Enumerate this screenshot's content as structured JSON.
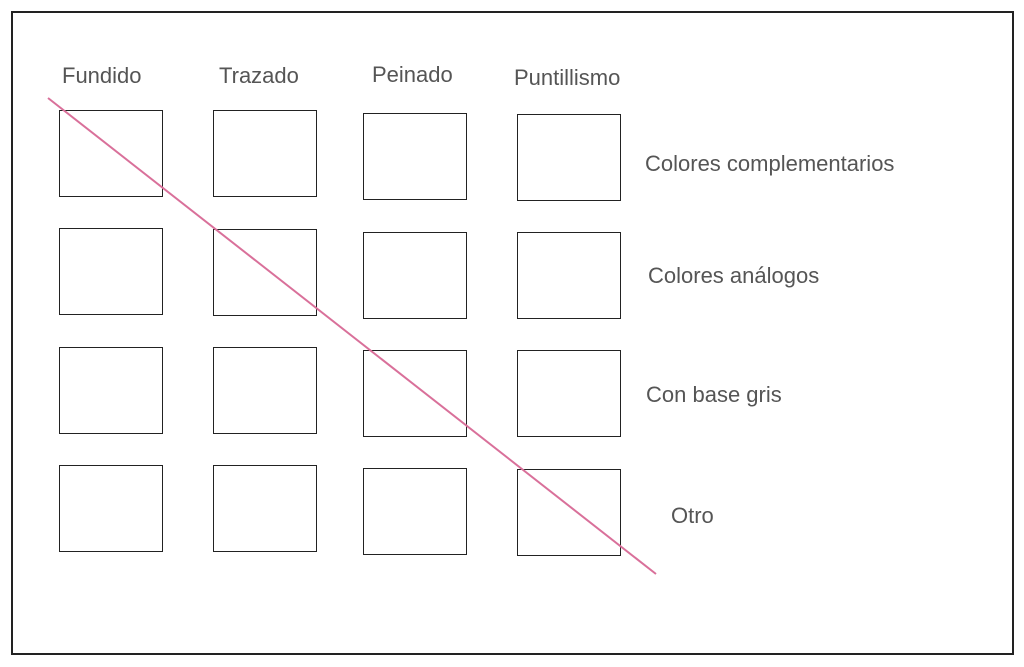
{
  "columns": [
    "Fundido",
    "Trazado",
    "Peinado",
    "Puntillismo"
  ],
  "rows": [
    "Colores complementarios",
    "Colores análogos",
    "Con base gris",
    "Otro"
  ],
  "strike_line_color": "#d9709a"
}
